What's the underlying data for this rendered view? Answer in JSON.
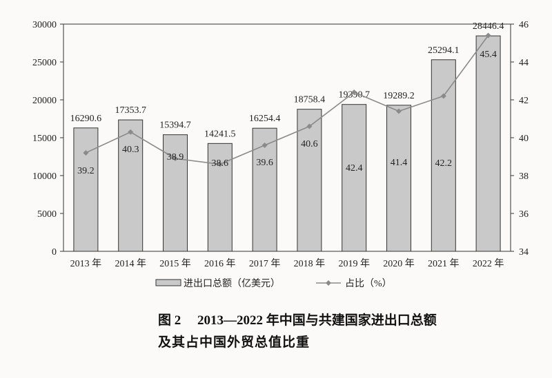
{
  "chart_data": {
    "type": "bar+line",
    "categories": [
      "2013 年",
      "2014 年",
      "2015 年",
      "2016 年",
      "2017 年",
      "2018 年",
      "2019 年",
      "2020 年",
      "2021 年",
      "2022 年"
    ],
    "series": [
      {
        "name": "进出口总额（亿美元）",
        "type": "bar",
        "axis": "left",
        "values": [
          16290.6,
          17353.7,
          15394.7,
          14241.5,
          16254.4,
          18758.4,
          19390.7,
          19289.2,
          25294.1,
          28446.4
        ],
        "labels": [
          "16290.6",
          "17353.7",
          "15394.7",
          "14241.5",
          "16254.4",
          "18758.4",
          "19390.7",
          "19289.2",
          "25294.1",
          "28446.4"
        ]
      },
      {
        "name": "占比（%）",
        "type": "line",
        "axis": "right",
        "values": [
          39.2,
          40.3,
          38.9,
          38.6,
          39.6,
          40.6,
          42.4,
          41.4,
          42.2,
          45.4
        ],
        "labels": [
          "39.2",
          "40.3",
          "38.9",
          "38.6",
          "39.6",
          "40.6",
          "42.4",
          "41.4",
          "42.2",
          "45.4"
        ]
      }
    ],
    "ylim_left": [
      0,
      30000
    ],
    "yticks_left": [
      "0",
      "5000",
      "10000",
      "15000",
      "20000",
      "25000",
      "30000"
    ],
    "ylim_right": [
      34,
      46
    ],
    "yticks_right": [
      "34",
      "36",
      "38",
      "40",
      "42",
      "44",
      "46"
    ],
    "grid": false,
    "legend": "bottom",
    "colors": {
      "bar": "#c9c9c9",
      "bar_edge": "#333333",
      "line": "#8a8a8a"
    }
  },
  "caption": {
    "figure_no": "图 2",
    "line1": "2013—2022 年中国与共建国家进出口总额",
    "line2": "及其占中国外贸总值比重"
  }
}
